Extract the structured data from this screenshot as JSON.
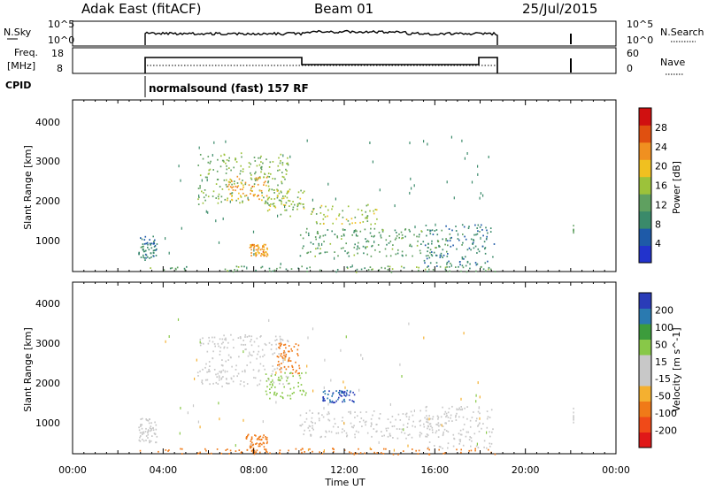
{
  "header": {
    "station": "Adak East (fitACF)",
    "beam": "Beam 01",
    "date": "25/Jul/2015"
  },
  "top_panels": {
    "nsky": {
      "label": "N.Sky",
      "left_ticks": [
        "10^5",
        "10^0"
      ],
      "right_ticks": [
        "10^5",
        "10^0"
      ],
      "right_label": "N.Search"
    },
    "freq": {
      "label_line1": "Freq.",
      "label_line2": "[MHz]",
      "left_ticks": [
        "18",
        "8"
      ],
      "right_ticks": [
        "60",
        "0"
      ],
      "right_label": "Nave"
    },
    "cpid": {
      "label": "CPID",
      "text": "normalsound (fast) 157 RF"
    }
  },
  "colors": {
    "power": [
      "#2233cc",
      "#1e5aa8",
      "#3a8a6a",
      "#5fa060",
      "#9cc23a",
      "#f0c020",
      "#f09020",
      "#e05010",
      "#d01010"
    ],
    "velocity": [
      "#e01818",
      "#f04a18",
      "#f07a18",
      "#f4b030",
      "#c8c8c8",
      "#c8c8c8",
      "#88c848",
      "#3c9c3c",
      "#2a7ab0",
      "#2a3cb8"
    ]
  },
  "chart_data": [
    {
      "type": "heatmap",
      "name_tag": "power",
      "ylabel": "Slant Range [km]",
      "ylim": [
        200,
        4500
      ],
      "yticks": [
        "1000",
        "2000",
        "3000",
        "4000"
      ],
      "xlim_hours": [
        0,
        24
      ],
      "colorbar_label": "Power [dB]",
      "colorbar_ticks": [
        "4",
        "8",
        "12",
        "16",
        "20",
        "24",
        "28"
      ],
      "scatter_regions": [
        {
          "t0": 2.9,
          "t1": 3.7,
          "r0": 500,
          "r1": 1100,
          "v": 6
        },
        {
          "t0": 5.5,
          "t1": 9.5,
          "r0": 1900,
          "r1": 3200,
          "v": 12
        },
        {
          "t0": 6.8,
          "t1": 8.6,
          "r0": 2000,
          "r1": 2600,
          "v": 20
        },
        {
          "t0": 8.5,
          "t1": 10.3,
          "r0": 1600,
          "r1": 2300,
          "v": 14
        },
        {
          "t0": 10.5,
          "t1": 13.5,
          "r0": 1400,
          "r1": 1900,
          "v": 14
        },
        {
          "t0": 10.0,
          "t1": 16.5,
          "r0": 600,
          "r1": 1300,
          "v": 10
        },
        {
          "t0": 15.5,
          "t1": 18.6,
          "r0": 350,
          "r1": 1400,
          "v": 6
        },
        {
          "t0": 7.8,
          "t1": 8.6,
          "r0": 600,
          "r1": 900,
          "v": 20
        },
        {
          "t0": 2.9,
          "t1": 18.7,
          "r0": 200,
          "r1": 350,
          "v": 10
        }
      ]
    },
    {
      "type": "heatmap",
      "name_tag": "velocity",
      "ylabel": "Slant Range [km]",
      "xlabel": "Time UT",
      "ylim": [
        200,
        4500
      ],
      "yticks": [
        "1000",
        "2000",
        "3000",
        "4000"
      ],
      "xlim_hours": [
        0,
        24
      ],
      "xticks": [
        "00:00",
        "04:00",
        "08:00",
        "12:00",
        "16:00",
        "20:00",
        "00:00"
      ],
      "colorbar_label": "Velocity [m s^-1]",
      "colorbar_ticks": [
        "-200",
        "-100",
        "-50",
        "-15",
        "15",
        "50",
        "100",
        "200"
      ],
      "scatter_regions": [
        {
          "t0": 2.9,
          "t1": 3.7,
          "r0": 500,
          "r1": 1100,
          "v": 0
        },
        {
          "t0": 5.5,
          "t1": 9.5,
          "r0": 1900,
          "r1": 3200,
          "v": 0
        },
        {
          "t0": 9.0,
          "t1": 10.0,
          "r0": 2200,
          "r1": 3000,
          "v": -40
        },
        {
          "t0": 8.5,
          "t1": 10.3,
          "r0": 1600,
          "r1": 2300,
          "v": 20
        },
        {
          "t0": 11.0,
          "t1": 12.5,
          "r0": 1500,
          "r1": 1800,
          "v": 150
        },
        {
          "t0": 10.0,
          "t1": 16.5,
          "r0": 600,
          "r1": 1300,
          "v": 0
        },
        {
          "t0": 7.6,
          "t1": 8.6,
          "r0": 250,
          "r1": 700,
          "v": -60
        },
        {
          "t0": 15.5,
          "t1": 18.6,
          "r0": 350,
          "r1": 1400,
          "v": 0
        },
        {
          "t0": 2.9,
          "t1": 18.7,
          "r0": 200,
          "r1": 350,
          "v": -40
        }
      ]
    }
  ]
}
